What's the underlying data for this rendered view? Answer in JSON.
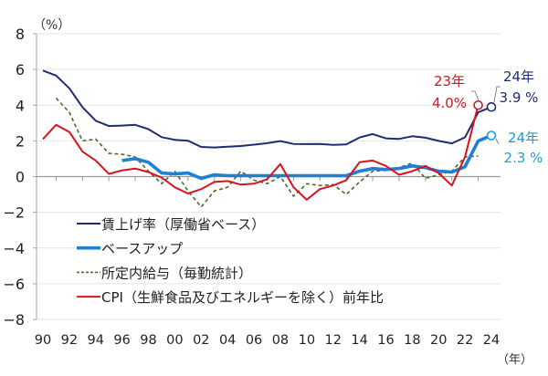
{
  "chart_data": {
    "type": "line",
    "ylabel": "（%）",
    "xlabel": "（年）",
    "ylim": [
      -8,
      8
    ],
    "yticks": [
      8,
      6,
      4,
      2,
      0,
      -2,
      -4,
      -6,
      -8
    ],
    "ytick_labels": [
      "8",
      "6",
      "4",
      "2",
      "0",
      "−2",
      "−4",
      "−6",
      "−8"
    ],
    "xlim": [
      1990,
      2024
    ],
    "xtick_labels": [
      "90",
      "92",
      "94",
      "96",
      "98",
      "00",
      "02",
      "04",
      "06",
      "08",
      "10",
      "12",
      "14",
      "16",
      "18",
      "20",
      "22",
      "24"
    ],
    "grid": true,
    "legend_placement": "lower-left",
    "series": [
      {
        "name": "賃上げ率（厚働省ベース）",
        "color": "#1f2d6e",
        "style": "solid",
        "x": [
          1990,
          1991,
          1992,
          1993,
          1994,
          1995,
          1996,
          1997,
          1998,
          1999,
          2000,
          2001,
          2002,
          2003,
          2004,
          2005,
          2006,
          2007,
          2008,
          2009,
          2010,
          2011,
          2012,
          2013,
          2014,
          2015,
          2016,
          2017,
          2018,
          2019,
          2020,
          2021,
          2022,
          2023,
          2024
        ],
        "values": [
          5.94,
          5.66,
          4.95,
          3.89,
          3.13,
          2.83,
          2.86,
          2.9,
          2.66,
          2.21,
          2.06,
          2.01,
          1.66,
          1.63,
          1.67,
          1.71,
          1.79,
          1.87,
          1.99,
          1.83,
          1.82,
          1.83,
          1.78,
          1.8,
          2.19,
          2.38,
          2.14,
          2.11,
          2.26,
          2.18,
          2.0,
          1.86,
          2.2,
          3.6,
          3.9
        ]
      },
      {
        "name": "ベースアップ",
        "color": "#1f7fd1",
        "style": "thick",
        "x": [
          1996,
          1997,
          1998,
          1999,
          2000,
          2001,
          2002,
          2003,
          2004,
          2005,
          2006,
          2007,
          2008,
          2009,
          2010,
          2011,
          2012,
          2013,
          2014,
          2015,
          2016,
          2017,
          2018,
          2019,
          2020,
          2021,
          2022,
          2023,
          2024
        ],
        "values": [
          0.9,
          1.0,
          0.8,
          0.2,
          0.15,
          0.2,
          -0.1,
          0.1,
          0.05,
          0.05,
          0.05,
          0.05,
          0.05,
          0.05,
          0.05,
          0.05,
          0.05,
          0.05,
          0.3,
          0.45,
          0.4,
          0.45,
          0.6,
          0.5,
          0.3,
          0.25,
          0.55,
          2.0,
          2.3
        ]
      },
      {
        "name": "所定内給与（毎勤統計）",
        "color": "#4a6b32",
        "style": "dashed",
        "x": [
          1991,
          1992,
          1993,
          1994,
          1995,
          1996,
          1997,
          1998,
          1999,
          2000,
          2001,
          2002,
          2003,
          2004,
          2005,
          2006,
          2007,
          2008,
          2009,
          2010,
          2011,
          2012,
          2013,
          2014,
          2015,
          2016,
          2017,
          2018,
          2019,
          2020,
          2021,
          2022,
          2023
        ],
        "values": [
          4.4,
          3.6,
          2.0,
          2.1,
          1.3,
          1.25,
          1.1,
          0.3,
          -0.4,
          0.3,
          -0.8,
          -1.7,
          -0.8,
          -0.6,
          0.3,
          -0.2,
          -0.4,
          0.0,
          -1.1,
          -0.4,
          -0.5,
          -0.45,
          -1.0,
          -0.3,
          0.3,
          0.35,
          0.5,
          0.75,
          -0.1,
          0.1,
          0.3,
          1.1,
          1.15
        ]
      },
      {
        "name": "CPI（生鮮食品及びエネルギーを除く）前年比",
        "color": "#d7141e",
        "style": "solid",
        "x": [
          1990,
          1991,
          1992,
          1993,
          1994,
          1995,
          1996,
          1997,
          1998,
          1999,
          2000,
          2001,
          2002,
          2003,
          2004,
          2005,
          2006,
          2007,
          2008,
          2009,
          2010,
          2011,
          2012,
          2013,
          2014,
          2015,
          2016,
          2017,
          2018,
          2019,
          2020,
          2021,
          2022,
          2023
        ],
        "values": [
          2.1,
          2.9,
          2.5,
          1.4,
          0.9,
          0.15,
          0.35,
          0.45,
          0.25,
          -0.05,
          -0.6,
          -0.95,
          -0.7,
          -0.3,
          -0.25,
          -0.45,
          -0.4,
          -0.15,
          0.7,
          -0.6,
          -1.3,
          -0.7,
          -0.5,
          -0.2,
          0.8,
          0.9,
          0.6,
          0.1,
          0.3,
          0.6,
          0.2,
          -0.5,
          1.1,
          4.0
        ]
      }
    ],
    "annotations": [
      {
        "year_label": "23年",
        "value_label": "4.0%",
        "x": 2023,
        "y": 4.0,
        "color": "#d7141e"
      },
      {
        "year_label": "24年",
        "value_label": "3.9 %",
        "x": 2024,
        "y": 3.9,
        "color": "#1f2d6e"
      },
      {
        "year_label": "24年",
        "value_label": "2.3 %",
        "x": 2024,
        "y": 2.3,
        "color": "#1f9ad6"
      }
    ]
  }
}
